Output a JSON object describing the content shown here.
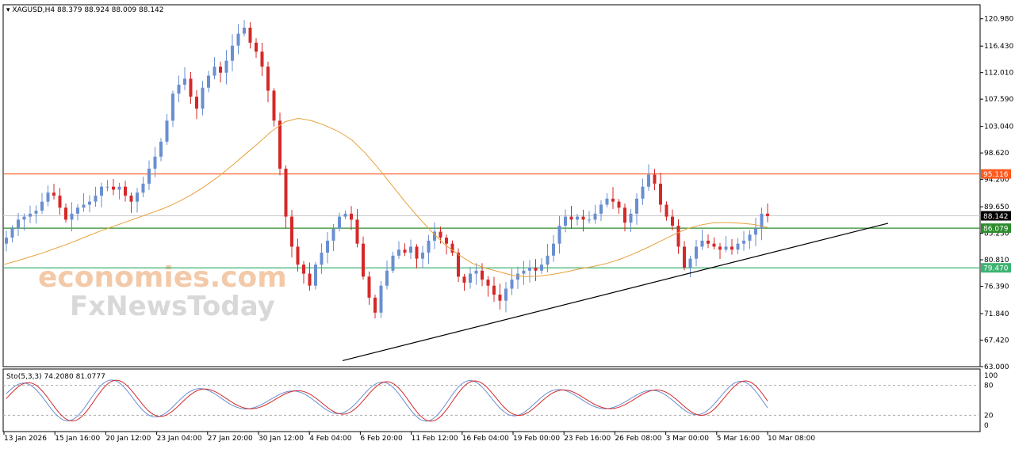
{
  "chart_data": {
    "type": "candlestick",
    "symbol": "XAGUSD,H4",
    "ohlc_header": "88.379 88.924 88.009 88.142",
    "y_ticks": [
      "120.980",
      "116.430",
      "112.010",
      "107.590",
      "103.040",
      "98.620",
      "94.200",
      "89.650",
      "85.230",
      "80.810",
      "76.390",
      "71.840",
      "67.420",
      "63.000"
    ],
    "y_range": [
      63.0,
      122.0
    ],
    "x_ticks": [
      "13 Jan 2026",
      "15 Jan 16:00",
      "20 Jan 12:00",
      "23 Jan 04:00",
      "27 Jan 20:00",
      "30 Jan 12:00",
      "4 Feb 04:00",
      "6 Feb 20:00",
      "11 Feb 12:00",
      "16 Feb 04:00",
      "19 Feb 00:00",
      "23 Feb 16:00",
      "26 Feb 08:00",
      "3 Mar 00:00",
      "5 Mar 16:00",
      "10 Mar 08:00"
    ],
    "price_levels": [
      {
        "label": "95.116",
        "value": 95.116,
        "color": "#ff5a1f"
      },
      {
        "label": "88.142",
        "value": 88.142,
        "color": "#000000"
      },
      {
        "label": "86.079",
        "value": 86.079,
        "color": "#2e8b2e"
      },
      {
        "label": "79.470",
        "value": 79.47,
        "color": "#3cb371"
      }
    ],
    "trendline": {
      "from": [
        "4 Feb 04:00",
        64.0
      ],
      "to": [
        "10 Mar 08:00+",
        86.9
      ]
    },
    "close_path": [
      84.5,
      86,
      87.5,
      88,
      88.5,
      89,
      90.5,
      92,
      91.5,
      89.5,
      87.5,
      88.5,
      89.5,
      90,
      90.5,
      91.5,
      93,
      93,
      92.5,
      93,
      91.5,
      90.5,
      92,
      93.5,
      96,
      98,
      100.5,
      104,
      108.5,
      110,
      111,
      108,
      106,
      109.5,
      111.5,
      113,
      112,
      114,
      116.5,
      118.5,
      119.5,
      117,
      115.5,
      113,
      109,
      104,
      96,
      88,
      83,
      80,
      78.5,
      76.5,
      80,
      82,
      84,
      86,
      88,
      88.5,
      87.5,
      83.5,
      78,
      74.5,
      72,
      76.5,
      79,
      81.5,
      82.5,
      82,
      83,
      81,
      82,
      84,
      85.5,
      84.5,
      83.5,
      82,
      78,
      77,
      78.5,
      79,
      77.5,
      76.5,
      75,
      74,
      76,
      77.5,
      78.5,
      79,
      79.5,
      79,
      80,
      81.5,
      83.5,
      86.5,
      88,
      87.5,
      88,
      87.5,
      87.5,
      88.5,
      90,
      91,
      90.5,
      89.5,
      87,
      88.5,
      91,
      93,
      95,
      93.5,
      90,
      88,
      86.5,
      83,
      79.5,
      81,
      83,
      84,
      83.5,
      83,
      82.5,
      83,
      82.5,
      83.5,
      84,
      85,
      86,
      88.5,
      88.1
    ],
    "ma_path": [
      80,
      80.6,
      81.3,
      82,
      82.8,
      83.6,
      84.5,
      85.4,
      86.2,
      87,
      87.8,
      88.6,
      89.4,
      90.4,
      91.6,
      93,
      94.6,
      96.4,
      98.3,
      100.2,
      102.2,
      103.8,
      104.4,
      104,
      103.2,
      102.2,
      100.8,
      98.6,
      96,
      93.2,
      90.4,
      87.8,
      85.4,
      83.2,
      81.6,
      80.2,
      79.4,
      78.8,
      78.2,
      78,
      78.1,
      78.4,
      78.8,
      79.3,
      79.7,
      80.2,
      80.9,
      81.8,
      82.8,
      83.9,
      85,
      86,
      86.6,
      87,
      87,
      86.9,
      86.7,
      86.2
    ],
    "stochastic": {
      "label": "Sto(5,3,3) 74.2080 81.0777",
      "levels": [
        80,
        20
      ],
      "y_ticks": [
        "100",
        "80",
        "20",
        "0"
      ],
      "main_color": "#6a8fd1",
      "signal_color": "#d42a2a"
    },
    "colors": {
      "bull": "#6a8fd1",
      "bear": "#d62828",
      "ma": "#e8a13b",
      "trendline": "#000000"
    }
  },
  "watermark": {
    "line1": "economies.com",
    "line2": "FxNewsToday"
  }
}
